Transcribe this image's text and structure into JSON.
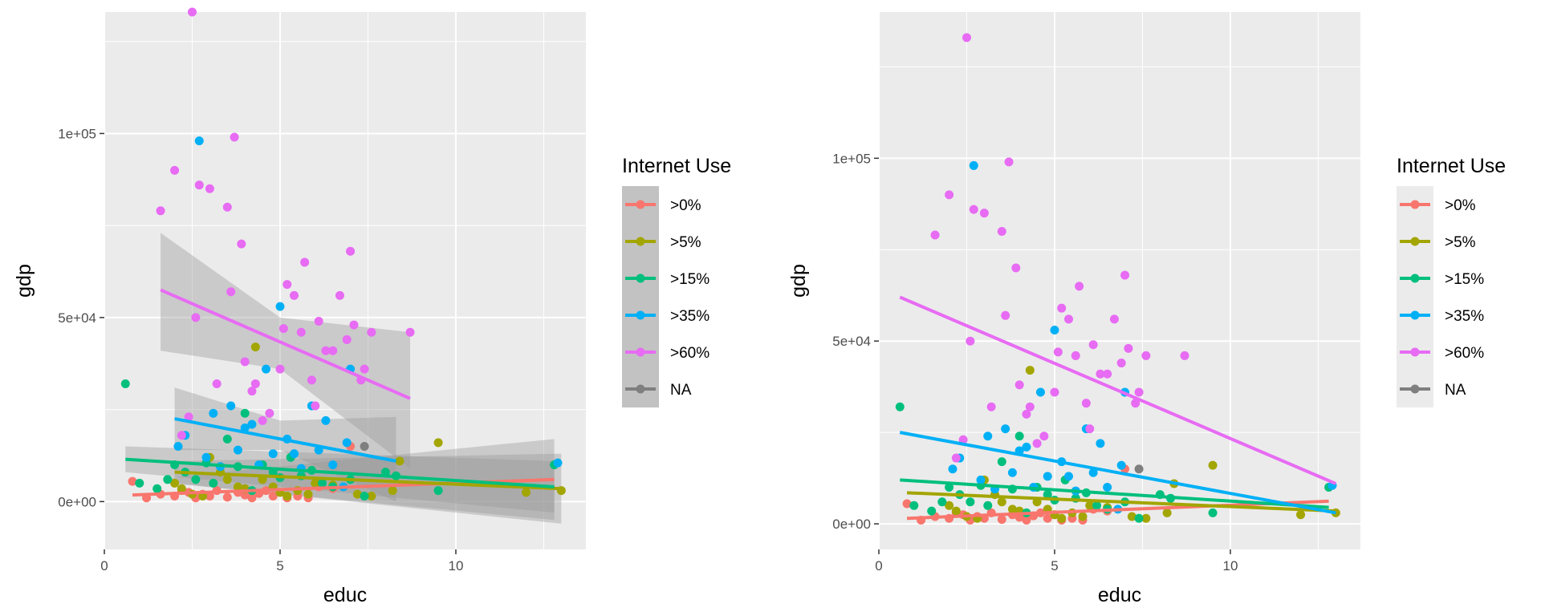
{
  "chart_data": [
    {
      "type": "scatter",
      "xlabel": "educ",
      "ylabel": "gdp",
      "xlim": [
        0,
        13.7
      ],
      "ylim": [
        -13000,
        133000
      ],
      "x_ticks": [
        0,
        5,
        10
      ],
      "x_tick_labels": [
        "0",
        "5",
        "10"
      ],
      "y_ticks": [
        0,
        50000,
        100000
      ],
      "y_tick_labels": [
        "0e+00",
        "5e+04",
        "1e+05"
      ],
      "grid": true,
      "legend": {
        "title": "Internet Use",
        "position": "right",
        "key_background": "#c2c2c2",
        "entries": [
          ">0%",
          ">5%",
          ">15%",
          ">35%",
          ">60%",
          "NA"
        ]
      },
      "ribbons": true
    },
    {
      "type": "scatter",
      "xlabel": "educ",
      "ylabel": "gdp",
      "xlim": [
        0,
        13.7
      ],
      "ylim": [
        -7000,
        140000
      ],
      "x_ticks": [
        0,
        5,
        10
      ],
      "x_tick_labels": [
        "0",
        "5",
        "10"
      ],
      "y_ticks": [
        0,
        50000,
        100000
      ],
      "y_tick_labels": [
        "0e+00",
        "5e+04",
        "1e+05"
      ],
      "grid": true,
      "legend": {
        "title": "Internet Use",
        "position": "right",
        "key_background": "#ebebeb",
        "entries": [
          ">0%",
          ">5%",
          ">15%",
          ">35%",
          ">60%",
          "NA"
        ]
      },
      "ribbons": false
    }
  ],
  "series": [
    {
      "name": ">0%",
      "color": "#F8766D",
      "points": [
        [
          0.8,
          5500
        ],
        [
          1.2,
          1000
        ],
        [
          1.6,
          2000
        ],
        [
          2.0,
          1500
        ],
        [
          2.2,
          3000
        ],
        [
          2.4,
          2500
        ],
        [
          2.6,
          1000
        ],
        [
          2.8,
          2000
        ],
        [
          3.0,
          1500
        ],
        [
          3.2,
          3000
        ],
        [
          3.5,
          1200
        ],
        [
          3.8,
          2500
        ],
        [
          4.0,
          1800
        ],
        [
          4.2,
          1000
        ],
        [
          4.4,
          2200
        ],
        [
          4.6,
          3000
        ],
        [
          4.8,
          1500
        ],
        [
          5.0,
          2500
        ],
        [
          5.2,
          1000
        ],
        [
          5.5,
          1500
        ],
        [
          5.8,
          1000
        ],
        [
          6.1,
          4000
        ],
        [
          6.5,
          3500
        ],
        [
          7.0,
          15000
        ]
      ],
      "fit1": {
        "x": [
          0.8,
          12.8
        ],
        "y": [
          1800,
          6000
        ],
        "band": [
          [
            1.8,
            5000,
            6500
          ],
          [
            12.8,
            -5000,
            17000
          ]
        ]
      },
      "fit2": {
        "x": [
          0.8,
          12.8
        ],
        "y": [
          1500,
          6200
        ]
      }
    },
    {
      "name": ">5%",
      "color": "#A3A500",
      "points": [
        [
          2.0,
          5000
        ],
        [
          2.2,
          3500
        ],
        [
          2.5,
          2000
        ],
        [
          2.8,
          1500
        ],
        [
          3.0,
          12000
        ],
        [
          3.3,
          8000
        ],
        [
          3.5,
          6000
        ],
        [
          3.8,
          4000
        ],
        [
          4.0,
          3500
        ],
        [
          4.3,
          42000
        ],
        [
          4.5,
          6000
        ],
        [
          4.8,
          4000
        ],
        [
          5.0,
          2500
        ],
        [
          5.2,
          1500
        ],
        [
          5.5,
          3000
        ],
        [
          5.8,
          2000
        ],
        [
          6.0,
          5000
        ],
        [
          6.5,
          4500
        ],
        [
          7.2,
          2000
        ],
        [
          7.6,
          1500
        ],
        [
          8.2,
          3000
        ],
        [
          8.4,
          11000
        ],
        [
          9.5,
          16000
        ],
        [
          12.0,
          2500
        ],
        [
          13.0,
          3000
        ]
      ],
      "fit1": {
        "x": [
          2.0,
          13.0
        ],
        "y": [
          8000,
          3500
        ],
        "band": [
          [
            2.0,
            5000,
            11000
          ],
          [
            13.0,
            -6000,
            13000
          ]
        ]
      },
      "fit2": {
        "x": [
          0.8,
          13.0
        ],
        "y": [
          8500,
          3500
        ]
      }
    },
    {
      "name": ">15%",
      "color": "#00BF7D",
      "points": [
        [
          0.6,
          32000
        ],
        [
          1.0,
          5000
        ],
        [
          1.5,
          3500
        ],
        [
          1.8,
          6000
        ],
        [
          2.0,
          10000
        ],
        [
          2.3,
          8000
        ],
        [
          2.6,
          6000
        ],
        [
          2.9,
          10500
        ],
        [
          3.1,
          5000
        ],
        [
          3.5,
          17000
        ],
        [
          3.8,
          9500
        ],
        [
          4.0,
          24000
        ],
        [
          4.2,
          3000
        ],
        [
          4.5,
          10000
        ],
        [
          4.8,
          8000
        ],
        [
          5.0,
          6500
        ],
        [
          5.3,
          12000
        ],
        [
          5.6,
          7000
        ],
        [
          5.9,
          8500
        ],
        [
          6.2,
          5000
        ],
        [
          6.5,
          4000
        ],
        [
          7.0,
          6000
        ],
        [
          7.4,
          1500
        ],
        [
          8.0,
          8000
        ],
        [
          8.3,
          7000
        ],
        [
          9.5,
          3000
        ],
        [
          12.8,
          10000
        ]
      ],
      "fit1": {
        "x": [
          0.6,
          12.8
        ],
        "y": [
          11500,
          4000
        ],
        "band": [
          [
            0.6,
            8000,
            15000
          ],
          [
            12.8,
            -3000,
            11000
          ]
        ]
      },
      "fit2": {
        "x": [
          0.6,
          12.8
        ],
        "y": [
          12000,
          4500
        ]
      }
    },
    {
      "name": ">35%",
      "color": "#00B0F6",
      "points": [
        [
          2.1,
          15000
        ],
        [
          2.3,
          18000
        ],
        [
          2.7,
          98000
        ],
        [
          2.9,
          12000
        ],
        [
          3.1,
          24000
        ],
        [
          3.3,
          9500
        ],
        [
          3.6,
          26000
        ],
        [
          3.8,
          14000
        ],
        [
          4.0,
          20000
        ],
        [
          4.2,
          21000
        ],
        [
          4.4,
          10000
        ],
        [
          4.6,
          36000
        ],
        [
          4.8,
          13000
        ],
        [
          5.0,
          53000
        ],
        [
          5.2,
          17000
        ],
        [
          5.4,
          13000
        ],
        [
          5.6,
          9000
        ],
        [
          5.9,
          26000
        ],
        [
          6.1,
          14000
        ],
        [
          6.3,
          22000
        ],
        [
          6.5,
          10000
        ],
        [
          6.8,
          4000
        ],
        [
          6.9,
          16000
        ],
        [
          7.0,
          36000
        ],
        [
          12.9,
          10500
        ]
      ],
      "fit1": {
        "x": [
          2.0,
          8.3
        ],
        "y": [
          22500,
          11000
        ],
        "band": [
          [
            2.0,
            14000,
            31000
          ],
          [
            5.0,
            14000,
            22000
          ],
          [
            8.3,
            0,
            23000
          ]
        ]
      },
      "fit2": {
        "x": [
          0.6,
          13.0
        ],
        "y": [
          25000,
          3000
        ]
      }
    },
    {
      "name": ">60%",
      "color": "#E76BF3",
      "points": [
        [
          1.6,
          79000
        ],
        [
          2.0,
          90000
        ],
        [
          2.2,
          18000
        ],
        [
          2.4,
          23000
        ],
        [
          2.5,
          133000
        ],
        [
          2.6,
          50000
        ],
        [
          2.7,
          86000
        ],
        [
          3.0,
          85000
        ],
        [
          3.2,
          32000
        ],
        [
          3.5,
          80000
        ],
        [
          3.6,
          57000
        ],
        [
          3.7,
          99000
        ],
        [
          3.9,
          70000
        ],
        [
          4.0,
          38000
        ],
        [
          4.2,
          30000
        ],
        [
          4.3,
          32000
        ],
        [
          4.5,
          22000
        ],
        [
          4.7,
          24000
        ],
        [
          5.0,
          36000
        ],
        [
          5.1,
          47000
        ],
        [
          5.2,
          59000
        ],
        [
          5.4,
          56000
        ],
        [
          5.6,
          46000
        ],
        [
          5.7,
          65000
        ],
        [
          5.9,
          33000
        ],
        [
          6.0,
          26000
        ],
        [
          6.1,
          49000
        ],
        [
          6.3,
          41000
        ],
        [
          6.5,
          41000
        ],
        [
          6.7,
          56000
        ],
        [
          6.9,
          44000
        ],
        [
          7.0,
          68000
        ],
        [
          7.1,
          48000
        ],
        [
          7.3,
          33000
        ],
        [
          7.4,
          36000
        ],
        [
          7.6,
          46000
        ],
        [
          8.7,
          46000
        ]
      ],
      "fit1": {
        "x": [
          1.6,
          8.7
        ],
        "y": [
          57500,
          28000
        ],
        "band": [
          [
            1.6,
            41000,
            73000
          ],
          [
            5.0,
            36000,
            50000
          ],
          [
            8.7,
            9000,
            46000
          ]
        ]
      },
      "fit2": {
        "x": [
          0.6,
          13.0
        ],
        "y": [
          62000,
          11000
        ]
      }
    },
    {
      "name": "NA",
      "color": "#7F7F7F",
      "points": [
        [
          7.4,
          15000
        ]
      ],
      "fit1": null,
      "fit2": null
    }
  ]
}
